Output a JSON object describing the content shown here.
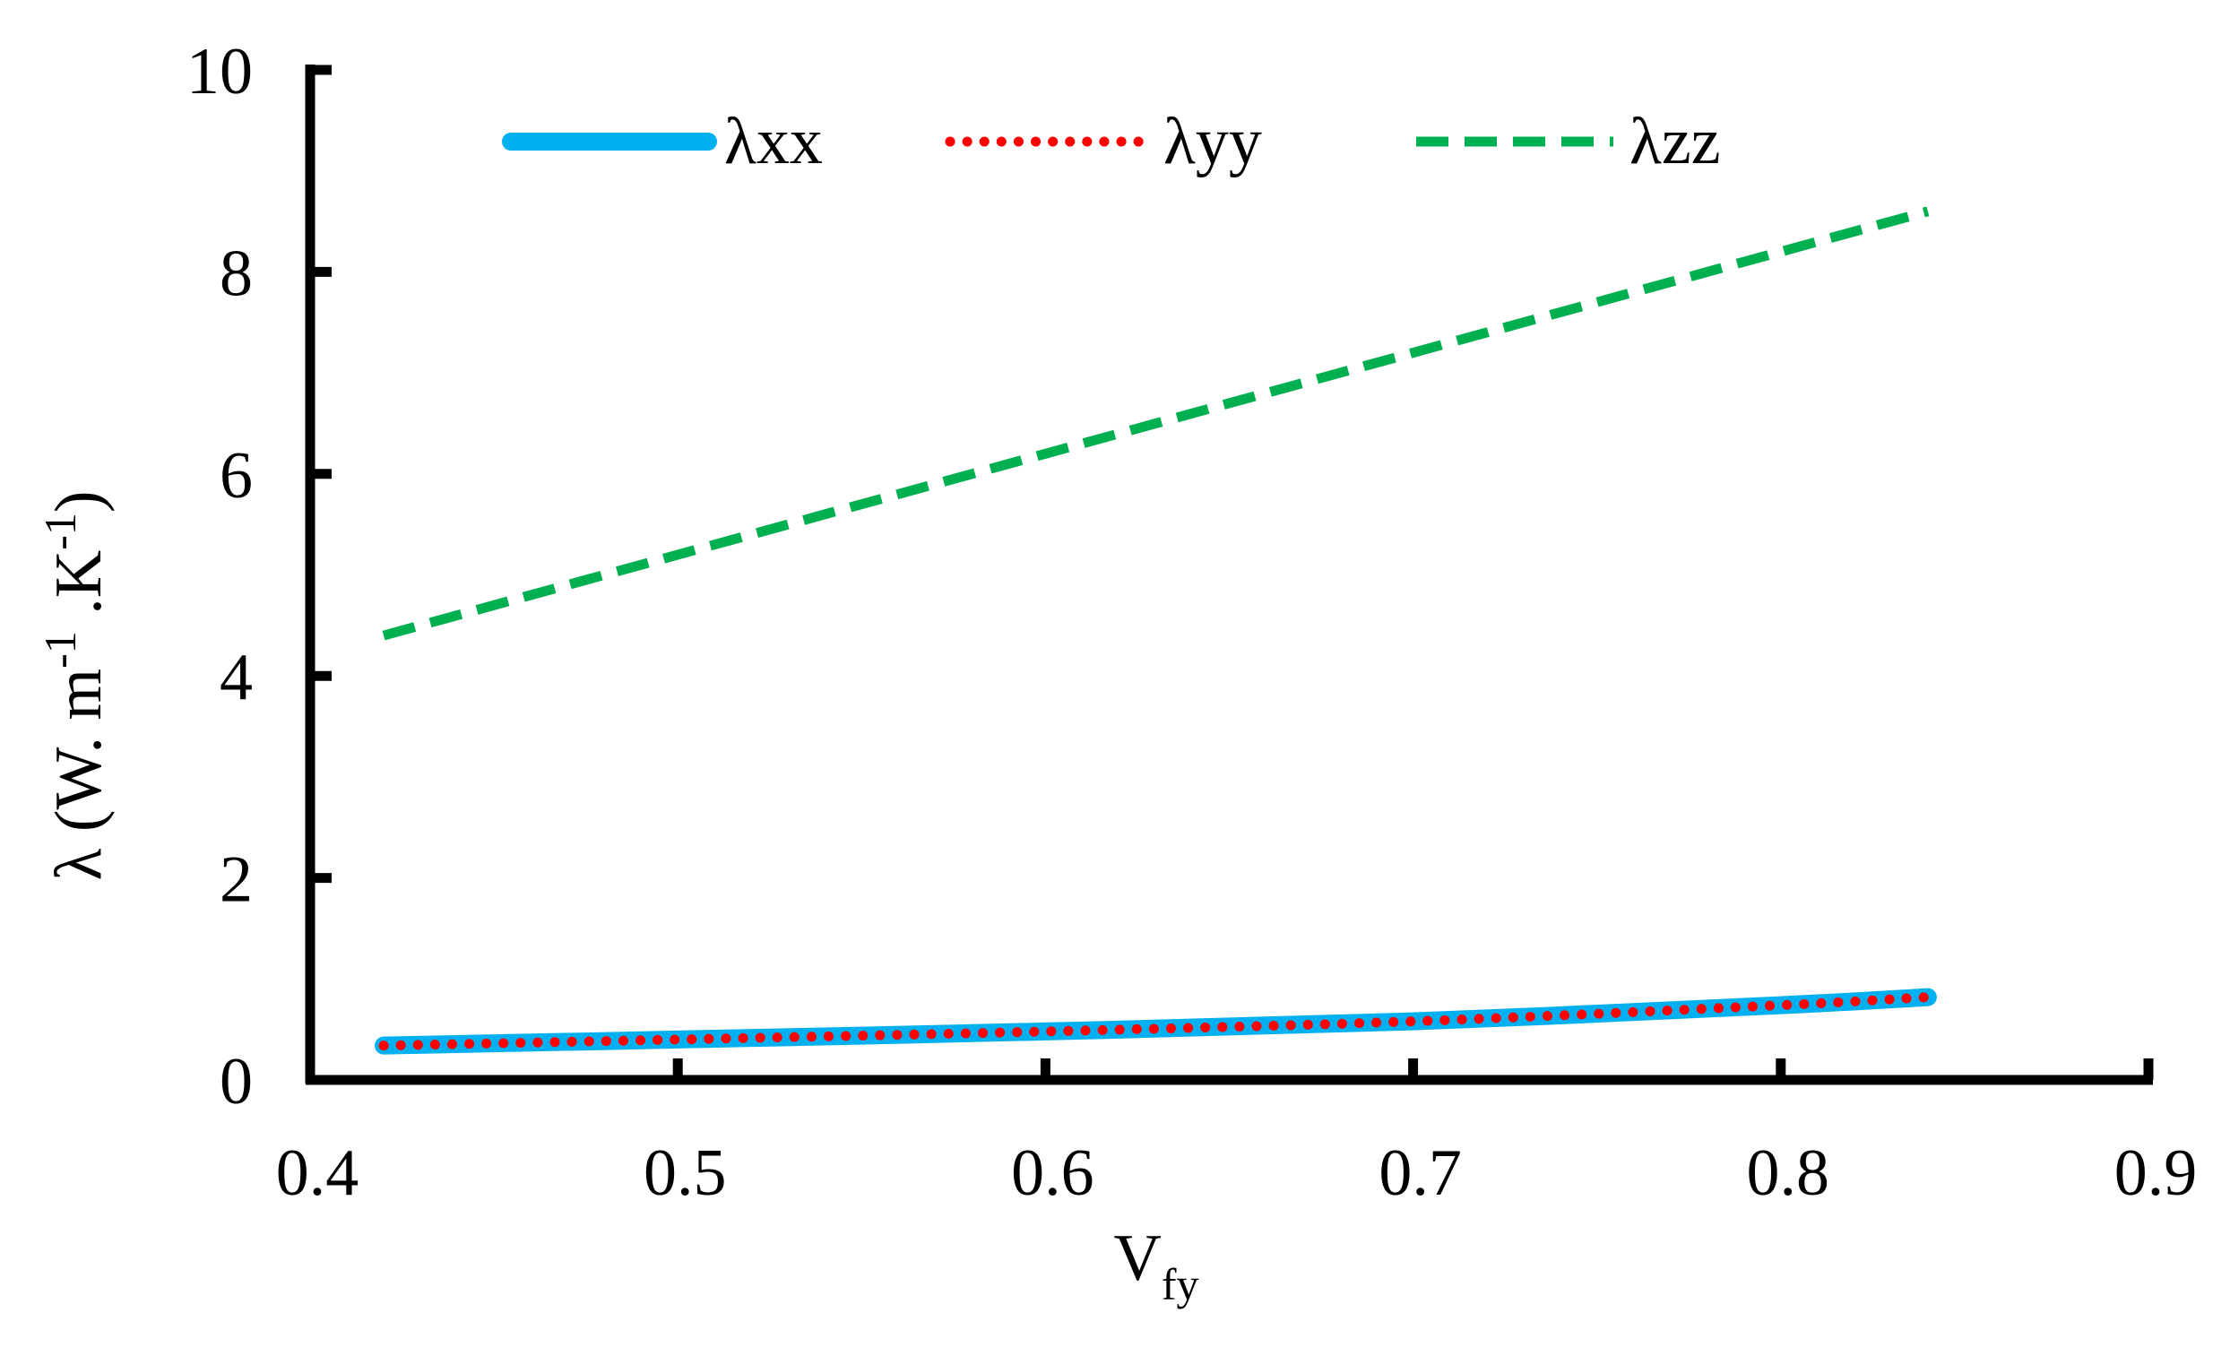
{
  "chart_data": {
    "type": "line",
    "title": "",
    "xlabel": "V",
    "xlabel_subscript": "fy",
    "ylabel": "λ (W. m",
    "ylabel_sup1": "-1",
    "ylabel_mid": " .K",
    "ylabel_sup2": "-1",
    "ylabel_end": ")",
    "xlim": [
      0.4,
      0.9
    ],
    "ylim": [
      0,
      10
    ],
    "x_ticks": [
      0.4,
      0.5,
      0.6,
      0.7,
      0.8,
      0.9
    ],
    "x_tick_labels": [
      "0.4",
      "0.5",
      "0.6",
      "0.7",
      "0.8",
      "0.9"
    ],
    "y_ticks": [
      0,
      2,
      4,
      6,
      8,
      10
    ],
    "y_tick_labels": [
      "0",
      "2",
      "4",
      "6",
      "8",
      "10"
    ],
    "grid": false,
    "legend_position": "top",
    "series": [
      {
        "name": "λxx",
        "style": "solid",
        "color": "#00B0F0",
        "x": [
          0.42,
          0.5,
          0.6,
          0.7,
          0.8,
          0.84
        ],
        "y": [
          0.34,
          0.4,
          0.48,
          0.58,
          0.74,
          0.82
        ]
      },
      {
        "name": "λyy",
        "style": "dotted",
        "color": "#FF0000",
        "x": [
          0.42,
          0.5,
          0.6,
          0.7,
          0.8,
          0.84
        ],
        "y": [
          0.34,
          0.4,
          0.48,
          0.58,
          0.74,
          0.82
        ]
      },
      {
        "name": "λzz",
        "style": "dashed",
        "color": "#00B050",
        "x": [
          0.42,
          0.5,
          0.6,
          0.7,
          0.8,
          0.84
        ],
        "y": [
          4.4,
          5.2,
          6.2,
          7.2,
          8.2,
          8.6
        ]
      }
    ]
  }
}
